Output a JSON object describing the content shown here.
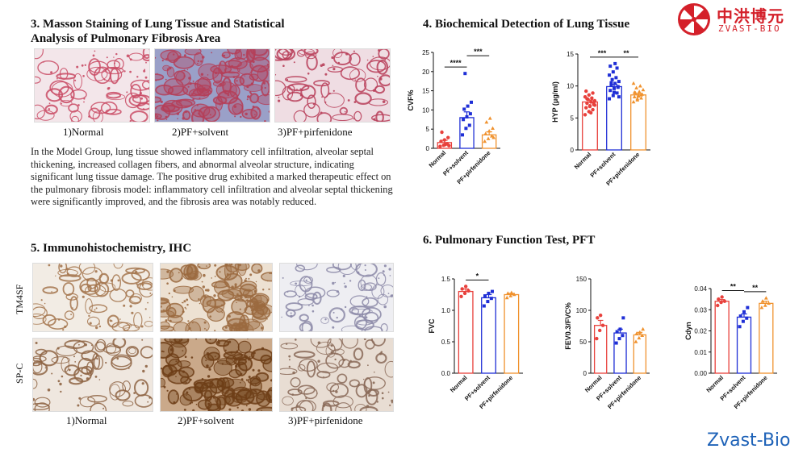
{
  "logo": {
    "cn": "中洪博元",
    "en": "ZVAST-BIO",
    "icon": "umbrella-logo-icon",
    "color": "#d4202a"
  },
  "brand": {
    "text": "Zvast-Bio",
    "color": "#1f63b8"
  },
  "section3": {
    "title_line1": "3. Masson Staining of Lung Tissue and Statistical",
    "title_line2": "Analysis of Pulmonary Fibrosis Area",
    "captions": [
      "1)Normal",
      "2)PF+solvent",
      "3)PF+pirfenidone"
    ],
    "paragraph": "In the Model Group, lung tissue showed inflammatory cell infiltration, alveolar septal thickening, increased collagen fibers, and abnormal alveolar structure, indicating significant lung tissue damage. The positive drug exhibited a marked therapeutic effect on the pulmonary fibrosis model: inflammatory cell infiltration and alveolar septal thickening were significantly improved, and the fibrosis area was notably reduced."
  },
  "section4": {
    "title": "4. Biochemical Detection of Lung Tissue"
  },
  "section5": {
    "title": "5. Immunohistochemistry, IHC",
    "row_labels": [
      "TM4SF",
      "SP-C"
    ],
    "captions": [
      "1)Normal",
      "2)PF+solvent",
      "3)PF+pirfenidone"
    ]
  },
  "section6": {
    "title": "6. Pulmonary Function Test, PFT"
  },
  "colors": {
    "normal": "#e8413c",
    "solvent": "#1f2fd6",
    "pirfenidone": "#f0922e"
  },
  "chart_data": [
    {
      "type": "bar",
      "id": "cvf",
      "categories": [
        "Normal",
        "PF+solvent",
        "PF+pirfenidone"
      ],
      "values": [
        1.5,
        8.0,
        3.5
      ],
      "errors": [
        0.6,
        1.5,
        0.8
      ],
      "points": [
        [
          0.5,
          0.8,
          1.2,
          1.8,
          2.2,
          2.8,
          4.2,
          1.0,
          0.7
        ],
        [
          3.5,
          5.2,
          6.0,
          7.5,
          8.2,
          9.0,
          10.2,
          11.0,
          12.0,
          19.5
        ],
        [
          1.8,
          2.5,
          3.2,
          3.8,
          4.5,
          5.2,
          6.8,
          7.8,
          2.8
        ]
      ],
      "ylabel": "CVF%",
      "ylim": [
        0,
        25
      ],
      "yticks": [
        "0",
        "5",
        "10",
        "15",
        "20",
        "25"
      ],
      "sig": [
        {
          "from": 0,
          "to": 1,
          "text": "****",
          "level": 0
        },
        {
          "from": 1,
          "to": 2,
          "text": "***",
          "level": 1
        }
      ]
    },
    {
      "type": "bar",
      "id": "hyp",
      "categories": [
        "Normal",
        "PF+solvent",
        "PF+pirfenidone"
      ],
      "values": [
        7.5,
        9.9,
        8.6
      ],
      "errors": [
        0.3,
        0.35,
        0.2
      ],
      "points": [
        [
          5.5,
          6.0,
          6.3,
          6.6,
          6.9,
          7.1,
          7.3,
          7.5,
          7.7,
          7.9,
          8.1,
          8.3,
          8.6,
          8.9,
          9.2,
          6.8,
          7.4,
          8.0,
          5.8,
          7.0
        ],
        [
          8.0,
          8.5,
          8.9,
          9.3,
          9.6,
          9.9,
          10.1,
          10.4,
          10.7,
          11.0,
          11.3,
          11.7,
          12.2,
          12.8,
          13.1,
          9.0,
          9.8,
          10.5,
          13.5,
          8.3
        ],
        [
          7.5,
          7.8,
          8.1,
          8.3,
          8.5,
          8.7,
          8.9,
          9.1,
          9.4,
          9.7,
          10.0,
          10.4,
          8.0,
          8.6,
          9.0,
          8.4
        ]
      ],
      "ylabel": "HYP (μg/ml)",
      "ylim": [
        0,
        15
      ],
      "yticks": [
        "0",
        "5",
        "10",
        "15"
      ],
      "sig": [
        {
          "from": 0,
          "to": 1,
          "text": "***",
          "level": 0
        },
        {
          "from": 1,
          "to": 2,
          "text": "**",
          "level": 0
        }
      ]
    },
    {
      "type": "bar",
      "id": "fvc",
      "categories": [
        "Normal",
        "PF+solvent",
        "PF+pirfenidone"
      ],
      "values": [
        1.3,
        1.2,
        1.25
      ],
      "errors": [
        0.04,
        0.05,
        0.02
      ],
      "points": [
        [
          1.22,
          1.27,
          1.31,
          1.34,
          1.38
        ],
        [
          1.07,
          1.14,
          1.19,
          1.23,
          1.27,
          1.3
        ],
        [
          1.2,
          1.23,
          1.25,
          1.27,
          1.28
        ]
      ],
      "ylabel": "FVC",
      "ylim": [
        0,
        1.5
      ],
      "yticks": [
        "0.0",
        "0.5",
        "1.0",
        "1.5"
      ],
      "sig": [
        {
          "from": 0,
          "to": 1,
          "text": "*",
          "level": 0
        }
      ]
    },
    {
      "type": "bar",
      "id": "fev",
      "categories": [
        "Normal",
        "PF+solvent",
        "PF+pirfenidone"
      ],
      "values": [
        76,
        64,
        61
      ],
      "errors": [
        8,
        6,
        4
      ],
      "points": [
        [
          55,
          68,
          76,
          88,
          92
        ],
        [
          48,
          55,
          60,
          66,
          70,
          88
        ],
        [
          50,
          56,
          60,
          63,
          65,
          70
        ]
      ],
      "ylabel": "FEV0.3/FVC%",
      "ylim": [
        0,
        150
      ],
      "yticks": [
        "0",
        "50",
        "100",
        "150"
      ],
      "sig": []
    },
    {
      "type": "bar",
      "id": "cdyn",
      "categories": [
        "Normal",
        "PF+solvent",
        "PF+pirfenidone"
      ],
      "values": [
        0.034,
        0.0265,
        0.033
      ],
      "errors": [
        0.0008,
        0.0015,
        0.001
      ],
      "points": [
        [
          0.032,
          0.0335,
          0.034,
          0.035,
          0.036
        ],
        [
          0.022,
          0.0245,
          0.026,
          0.027,
          0.029,
          0.031
        ],
        [
          0.031,
          0.032,
          0.033,
          0.034,
          0.0355
        ]
      ],
      "ylabel": "Cdyn",
      "ylim": [
        0,
        0.04
      ],
      "yticks": [
        "0.00",
        "0.01",
        "0.02",
        "0.03",
        "0.04"
      ],
      "sig": [
        {
          "from": 0,
          "to": 1,
          "text": "**",
          "level": 0
        },
        {
          "from": 1,
          "to": 2,
          "text": "**",
          "level": 0
        }
      ]
    }
  ]
}
